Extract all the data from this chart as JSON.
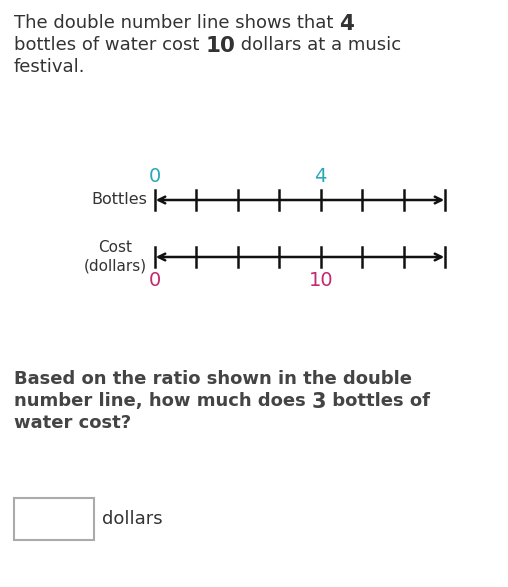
{
  "bg_color": "#ffffff",
  "fig_width": 5.08,
  "fig_height": 5.87,
  "dpi": 100,
  "color_bottles_nums": "#2aa8b8",
  "color_cost_nums": "#c4286e",
  "color_line": "#111111",
  "color_text": "#333333",
  "color_question": "#444444",
  "title_fontsize": 13.0,
  "label_fontsize": 11.5,
  "num_fontsize": 14,
  "question_fontsize": 13.0,
  "dollars_fontsize": 13.0,
  "bottles_label": "Bottles",
  "cost_label": "Cost\n(dollars)",
  "num0_top": "0",
  "num4_top": "4",
  "num0_bot": "0",
  "num10_bot": "10",
  "question_line1": "Based on the ratio shown in the double",
  "question_line2a": "number line, how much does ",
  "question_line2b": "3",
  "question_line2c": " bottles of",
  "question_line3": "water cost?",
  "dollars_text": "dollars"
}
